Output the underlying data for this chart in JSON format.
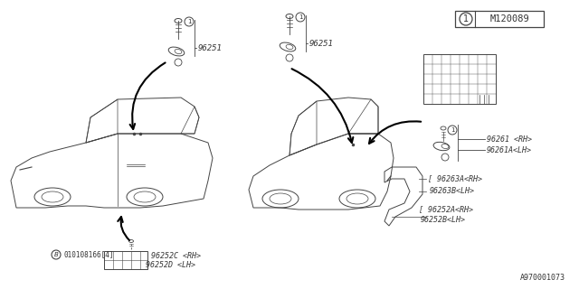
{
  "bg_color": "#ffffff",
  "line_color": "#444444",
  "text_color": "#333333",
  "fig_width": 6.4,
  "fig_height": 3.2,
  "dpi": 100,
  "footer_label": "A970001073",
  "labels": {
    "96251_left": "96251",
    "96251_right": "96251",
    "96261": "96261 <RH>",
    "96261A": "96261A<LH>",
    "96263A": "96263A<RH>",
    "96263B": "96263B<LH>",
    "96252A": "96252A<RH>",
    "96252B": "96252B<LH>",
    "96252C": "96252C <RH>",
    "96252D": "96252D <LH>"
  }
}
